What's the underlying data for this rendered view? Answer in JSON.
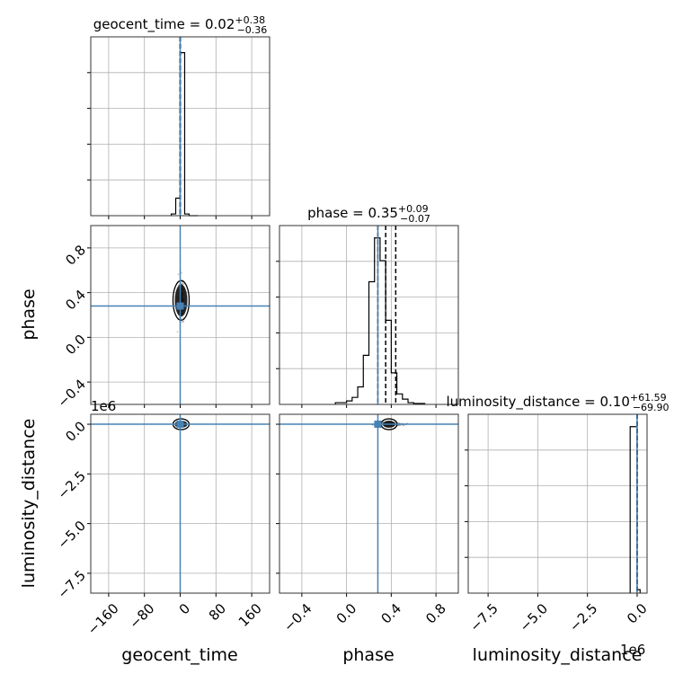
{
  "figure": {
    "xlabels": [
      "geocent_time",
      "phase",
      "luminosity_distance"
    ],
    "ylabels": [
      "phase",
      "luminosity_distance"
    ],
    "offset_text": "1e6",
    "colors": {
      "truth": "#4682b4",
      "hist": "#000000",
      "grid": "#b0b0b0",
      "samples": "#888888"
    }
  },
  "chart_data": {
    "type": "corner",
    "parameters": [
      {
        "name": "geocent_time",
        "median": "0.02",
        "plus": "+0.38",
        "minus": "−0.36",
        "range": [
          -200,
          200
        ],
        "truth": 0.0,
        "quantiles": [
          -0.34,
          0.02,
          0.4
        ],
        "ticks": [
          -160,
          -80,
          0,
          80,
          160
        ],
        "tick_labels": [
          "−160",
          "−80",
          "0",
          "80",
          "160"
        ],
        "hist": {
          "edges": [
            -20,
            -10,
            0,
            10,
            20,
            30,
            40
          ],
          "counts": [
            0.01,
            0.1,
            0.93,
            0.01,
            0.0,
            0.0
          ]
        }
      },
      {
        "name": "phase",
        "median": "0.35",
        "plus": "+0.09",
        "minus": "−0.07",
        "range": [
          -0.6,
          1.0
        ],
        "truth": 0.28,
        "quantiles": [
          0.28,
          0.35,
          0.44
        ],
        "ticks": [
          -0.4,
          0.0,
          0.4,
          0.8
        ],
        "tick_labels": [
          "−0.4",
          "0.0",
          "0.4",
          "0.8"
        ],
        "hist": {
          "edges": [
            -0.1,
            0.0,
            0.05,
            0.1,
            0.15,
            0.2,
            0.25,
            0.3,
            0.35,
            0.4,
            0.45,
            0.5,
            0.55,
            0.6,
            0.7
          ],
          "counts": [
            0.01,
            0.02,
            0.04,
            0.1,
            0.28,
            0.7,
            0.95,
            0.82,
            0.48,
            0.18,
            0.06,
            0.03,
            0.01,
            0.005
          ]
        }
      },
      {
        "name": "luminosity_distance",
        "median": "0.10",
        "plus": "+61.59",
        "minus": "−69.90",
        "range": [
          -8500000.0,
          500000.0
        ],
        "truth": 0.0,
        "quantiles": [
          -70,
          0.1,
          62
        ],
        "ticks": [
          -7500000.0,
          -5000000.0,
          -2500000.0,
          0
        ],
        "tick_labels": [
          "−7.5",
          "−5.0",
          "−2.5",
          "0.0"
        ],
        "hist": {
          "edges": [
            -350000.0,
            0.0,
            150000.0
          ],
          "counts": [
            0.95,
            0.02
          ]
        }
      }
    ],
    "scatter_points": {
      "geocent_time_vs_phase": {
        "center": [
          2,
          0.33
        ],
        "spread": [
          3,
          0.08
        ]
      },
      "geocent_time_vs_luminosity_distance": {
        "center": [
          2,
          0.0
        ],
        "spread": [
          3,
          40000
        ]
      },
      "phase_vs_luminosity_distance": {
        "center": [
          0.38,
          0.0
        ],
        "spread": [
          0.06,
          40000
        ]
      }
    }
  }
}
